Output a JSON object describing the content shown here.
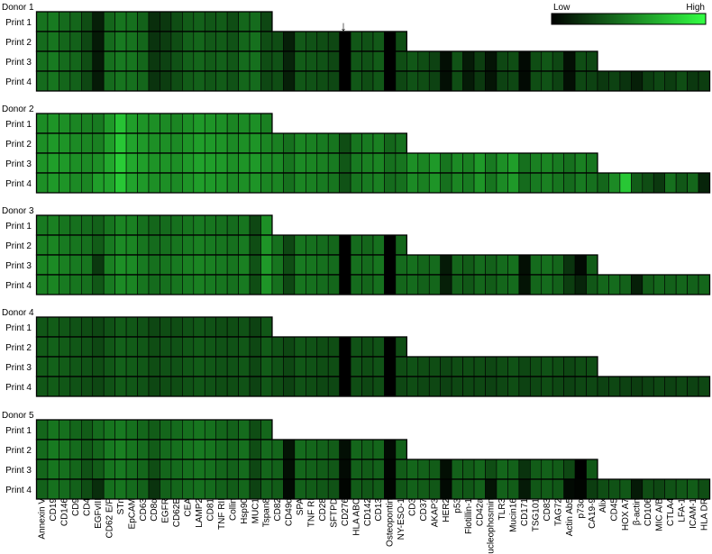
{
  "legend": {
    "low_label": "Low",
    "high_label": "High",
    "low_color": "#000000",
    "high_color": "#33ff44"
  },
  "arrow_marker": "↓",
  "chart_data": {
    "type": "heatmap",
    "colormap": [
      "#000000",
      "#33ff44"
    ],
    "value_range": [
      0,
      1
    ],
    "print_labels": [
      "Print 1",
      "Print 2",
      "Print 3",
      "Print 4"
    ],
    "markers": [
      "Annexin V",
      "CD19",
      "CD146",
      "CD9",
      "CD4",
      "EGFvIII",
      "CD62 E/P",
      "STn",
      "EpCAM",
      "CD63",
      "CD8α",
      "EGFR",
      "CD62E",
      "CEA",
      "LAMP2",
      "CD81",
      "TNF RII",
      "Collin",
      "Hsp90",
      "MUC1",
      "Tspan8",
      "CD82",
      "CD49d",
      "SPA",
      "TNF RI",
      "CD28",
      "SFTPD",
      "CD276",
      "HLA ABC",
      "CD142",
      "CD13",
      "Osteopontin",
      "NY-ESO-1",
      "CD3",
      "CD37",
      "AKAP3",
      "HER2",
      "p53",
      "Flotillin-1",
      "CD42a",
      "Nucleophosmin",
      "TLR3",
      "Mucin16",
      "CD171",
      "TSG101",
      "CD83",
      "TAG72",
      "Actin Ab5",
      "p73α",
      "CA19-9",
      "Alix",
      "CD45",
      "HOX A7",
      "β-actin",
      "CD106",
      "MIC A/B",
      "CTLA4",
      "LFA-1",
      "ICAM-1",
      "HLA DR"
    ],
    "prints_columns": [
      21,
      33,
      50,
      60
    ],
    "donors": [
      {
        "name": "Donor 1",
        "prints": [
          [
            0.45,
            0.48,
            0.42,
            0.4,
            0.3,
            0.12,
            0.4,
            0.46,
            0.44,
            0.38,
            0.18,
            0.22,
            0.3,
            0.36,
            0.38,
            0.34,
            0.36,
            0.3,
            0.4,
            0.42,
            0.28
          ],
          [
            0.42,
            0.46,
            0.4,
            0.38,
            0.28,
            0.1,
            0.42,
            0.48,
            0.45,
            0.4,
            0.2,
            0.24,
            0.3,
            0.38,
            0.4,
            0.35,
            0.36,
            0.32,
            0.4,
            0.44,
            0.3,
            0.3,
            0.12,
            0.35,
            0.32,
            0.3,
            0.28,
            0.0,
            0.34,
            0.32,
            0.35,
            0.0,
            0.3
          ],
          [
            0.44,
            0.48,
            0.42,
            0.4,
            0.3,
            0.1,
            0.44,
            0.48,
            0.46,
            0.4,
            0.22,
            0.26,
            0.32,
            0.38,
            0.4,
            0.36,
            0.38,
            0.34,
            0.42,
            0.44,
            0.3,
            0.32,
            0.14,
            0.36,
            0.34,
            0.32,
            0.28,
            0.0,
            0.34,
            0.32,
            0.36,
            0.0,
            0.3,
            0.34,
            0.3,
            0.26,
            0.06,
            0.32,
            0.1,
            0.24,
            0.08,
            0.28,
            0.3,
            0.04,
            0.3,
            0.34,
            0.28,
            0.06,
            0.3,
            0.28
          ],
          [
            0.42,
            0.46,
            0.4,
            0.38,
            0.28,
            0.1,
            0.42,
            0.46,
            0.44,
            0.4,
            0.2,
            0.24,
            0.3,
            0.36,
            0.38,
            0.34,
            0.36,
            0.32,
            0.4,
            0.42,
            0.28,
            0.3,
            0.12,
            0.34,
            0.32,
            0.3,
            0.28,
            0.0,
            0.34,
            0.3,
            0.34,
            0.0,
            0.28,
            0.32,
            0.3,
            0.26,
            0.06,
            0.3,
            0.1,
            0.22,
            0.08,
            0.26,
            0.28,
            0.04,
            0.3,
            0.32,
            0.26,
            0.06,
            0.28,
            0.26,
            0.22,
            0.26,
            0.2,
            0.12,
            0.24,
            0.28,
            0.24,
            0.3,
            0.22,
            0.24
          ]
        ]
      },
      {
        "name": "Donor 2",
        "prints": [
          [
            0.55,
            0.58,
            0.56,
            0.52,
            0.5,
            0.48,
            0.6,
            0.76,
            0.62,
            0.58,
            0.56,
            0.54,
            0.52,
            0.56,
            0.6,
            0.58,
            0.56,
            0.52,
            0.54,
            0.56,
            0.5
          ],
          [
            0.56,
            0.6,
            0.58,
            0.54,
            0.52,
            0.5,
            0.62,
            0.78,
            0.64,
            0.6,
            0.56,
            0.56,
            0.54,
            0.58,
            0.62,
            0.6,
            0.58,
            0.54,
            0.56,
            0.58,
            0.52,
            0.5,
            0.44,
            0.52,
            0.5,
            0.48,
            0.46,
            0.3,
            0.46,
            0.48,
            0.5,
            0.4,
            0.44
          ],
          [
            0.58,
            0.62,
            0.6,
            0.56,
            0.54,
            0.56,
            0.66,
            0.8,
            0.66,
            0.62,
            0.58,
            0.58,
            0.56,
            0.6,
            0.64,
            0.62,
            0.6,
            0.56,
            0.58,
            0.6,
            0.54,
            0.54,
            0.46,
            0.54,
            0.52,
            0.5,
            0.48,
            0.34,
            0.48,
            0.5,
            0.52,
            0.44,
            0.46,
            0.56,
            0.52,
            0.6,
            0.46,
            0.54,
            0.5,
            0.6,
            0.48,
            0.56,
            0.62,
            0.44,
            0.5,
            0.52,
            0.48,
            0.44,
            0.5,
            0.46
          ],
          [
            0.56,
            0.6,
            0.58,
            0.54,
            0.52,
            0.62,
            0.64,
            0.78,
            0.64,
            0.6,
            0.56,
            0.56,
            0.54,
            0.58,
            0.62,
            0.6,
            0.58,
            0.54,
            0.56,
            0.58,
            0.52,
            0.52,
            0.44,
            0.52,
            0.5,
            0.48,
            0.46,
            0.32,
            0.46,
            0.48,
            0.5,
            0.42,
            0.44,
            0.54,
            0.5,
            0.58,
            0.44,
            0.52,
            0.48,
            0.58,
            0.46,
            0.54,
            0.6,
            0.42,
            0.48,
            0.5,
            0.46,
            0.42,
            0.48,
            0.44,
            0.4,
            0.54,
            0.78,
            0.36,
            0.3,
            0.22,
            0.44,
            0.34,
            0.4,
            0.14
          ]
        ]
      },
      {
        "name": "Donor 3",
        "prints": [
          [
            0.48,
            0.5,
            0.46,
            0.44,
            0.42,
            0.38,
            0.46,
            0.52,
            0.5,
            0.44,
            0.4,
            0.42,
            0.44,
            0.46,
            0.48,
            0.46,
            0.44,
            0.42,
            0.46,
            0.28,
            0.56
          ],
          [
            0.5,
            0.52,
            0.48,
            0.46,
            0.44,
            0.36,
            0.48,
            0.54,
            0.52,
            0.46,
            0.42,
            0.44,
            0.46,
            0.48,
            0.5,
            0.48,
            0.46,
            0.44,
            0.48,
            0.3,
            0.58,
            0.44,
            0.28,
            0.46,
            0.44,
            0.42,
            0.4,
            0.0,
            0.42,
            0.4,
            0.44,
            0.0,
            0.4
          ],
          [
            0.52,
            0.54,
            0.5,
            0.48,
            0.46,
            0.22,
            0.5,
            0.56,
            0.54,
            0.48,
            0.44,
            0.46,
            0.48,
            0.5,
            0.52,
            0.5,
            0.48,
            0.46,
            0.5,
            0.32,
            0.6,
            0.46,
            0.3,
            0.48,
            0.46,
            0.44,
            0.42,
            0.0,
            0.44,
            0.42,
            0.46,
            0.0,
            0.42,
            0.44,
            0.4,
            0.42,
            0.1,
            0.4,
            0.36,
            0.42,
            0.38,
            0.42,
            0.44,
            0.06,
            0.42,
            0.44,
            0.4,
            0.2,
            0.04,
            0.36
          ],
          [
            0.5,
            0.52,
            0.48,
            0.46,
            0.44,
            0.34,
            0.48,
            0.54,
            0.52,
            0.46,
            0.42,
            0.44,
            0.46,
            0.48,
            0.5,
            0.48,
            0.46,
            0.44,
            0.48,
            0.3,
            0.58,
            0.44,
            0.28,
            0.46,
            0.44,
            0.42,
            0.4,
            0.0,
            0.42,
            0.4,
            0.44,
            0.0,
            0.4,
            0.42,
            0.38,
            0.4,
            0.12,
            0.38,
            0.34,
            0.4,
            0.36,
            0.4,
            0.42,
            0.08,
            0.4,
            0.42,
            0.38,
            0.24,
            0.14,
            0.34,
            0.4,
            0.42,
            0.38,
            0.12,
            0.36,
            0.4,
            0.38,
            0.4,
            0.38,
            0.4
          ]
        ]
      },
      {
        "name": "Donor 4",
        "prints": [
          [
            0.34,
            0.36,
            0.34,
            0.32,
            0.3,
            0.28,
            0.32,
            0.36,
            0.34,
            0.32,
            0.28,
            0.3,
            0.3,
            0.32,
            0.34,
            0.32,
            0.3,
            0.3,
            0.32,
            0.26,
            0.34
          ],
          [
            0.36,
            0.38,
            0.36,
            0.34,
            0.32,
            0.28,
            0.34,
            0.38,
            0.36,
            0.34,
            0.3,
            0.32,
            0.32,
            0.34,
            0.36,
            0.34,
            0.32,
            0.32,
            0.34,
            0.28,
            0.36,
            0.32,
            0.28,
            0.34,
            0.32,
            0.3,
            0.3,
            0.0,
            0.32,
            0.3,
            0.32,
            0.0,
            0.3
          ],
          [
            0.36,
            0.38,
            0.36,
            0.34,
            0.32,
            0.3,
            0.34,
            0.38,
            0.36,
            0.34,
            0.3,
            0.32,
            0.32,
            0.34,
            0.36,
            0.34,
            0.32,
            0.32,
            0.34,
            0.28,
            0.36,
            0.32,
            0.28,
            0.34,
            0.32,
            0.3,
            0.3,
            0.0,
            0.32,
            0.3,
            0.32,
            0.0,
            0.3,
            0.32,
            0.3,
            0.3,
            0.28,
            0.3,
            0.3,
            0.3,
            0.28,
            0.3,
            0.32,
            0.28,
            0.3,
            0.32,
            0.3,
            0.28,
            0.3,
            0.3
          ],
          [
            0.34,
            0.36,
            0.34,
            0.32,
            0.3,
            0.28,
            0.32,
            0.36,
            0.34,
            0.32,
            0.28,
            0.3,
            0.3,
            0.32,
            0.34,
            0.32,
            0.3,
            0.3,
            0.32,
            0.26,
            0.34,
            0.3,
            0.26,
            0.32,
            0.3,
            0.28,
            0.28,
            0.0,
            0.3,
            0.28,
            0.3,
            0.0,
            0.28,
            0.3,
            0.28,
            0.28,
            0.26,
            0.28,
            0.28,
            0.28,
            0.26,
            0.28,
            0.3,
            0.26,
            0.28,
            0.3,
            0.28,
            0.26,
            0.28,
            0.28,
            0.26,
            0.28,
            0.26,
            0.24,
            0.26,
            0.28,
            0.26,
            0.28,
            0.26,
            0.28
          ]
        ]
      },
      {
        "name": "Donor 5",
        "prints": [
          [
            0.4,
            0.46,
            0.44,
            0.4,
            0.36,
            0.42,
            0.46,
            0.48,
            0.44,
            0.4,
            0.36,
            0.4,
            0.42,
            0.44,
            0.46,
            0.44,
            0.4,
            0.38,
            0.42,
            0.3,
            0.4
          ],
          [
            0.42,
            0.48,
            0.46,
            0.42,
            0.36,
            0.4,
            0.48,
            0.5,
            0.46,
            0.42,
            0.36,
            0.42,
            0.44,
            0.46,
            0.48,
            0.46,
            0.42,
            0.4,
            0.44,
            0.3,
            0.42,
            0.4,
            0.08,
            0.42,
            0.4,
            0.38,
            0.36,
            0.06,
            0.4,
            0.38,
            0.4,
            0.04,
            0.38
          ],
          [
            0.4,
            0.46,
            0.44,
            0.4,
            0.32,
            0.36,
            0.46,
            0.48,
            0.44,
            0.4,
            0.3,
            0.4,
            0.42,
            0.44,
            0.46,
            0.44,
            0.4,
            0.38,
            0.42,
            0.28,
            0.4,
            0.38,
            0.06,
            0.4,
            0.38,
            0.36,
            0.34,
            0.04,
            0.38,
            0.36,
            0.38,
            0.02,
            0.36,
            0.4,
            0.38,
            0.36,
            0.06,
            0.38,
            0.36,
            0.4,
            0.3,
            0.4,
            0.38,
            0.2,
            0.36,
            0.38,
            0.36,
            0.28,
            0.0,
            0.34
          ],
          [
            0.38,
            0.44,
            0.42,
            0.38,
            0.3,
            0.18,
            0.44,
            0.46,
            0.42,
            0.38,
            0.2,
            0.38,
            0.4,
            0.42,
            0.44,
            0.42,
            0.38,
            0.36,
            0.4,
            0.26,
            0.38,
            0.36,
            0.04,
            0.38,
            0.36,
            0.34,
            0.32,
            0.02,
            0.36,
            0.34,
            0.36,
            0.02,
            0.34,
            0.38,
            0.36,
            0.34,
            0.04,
            0.36,
            0.34,
            0.38,
            0.08,
            0.38,
            0.36,
            0.1,
            0.34,
            0.36,
            0.34,
            0.04,
            0.02,
            0.24,
            0.3,
            0.32,
            0.34,
            0.1,
            0.3,
            0.28,
            0.32,
            0.34,
            0.36,
            0.3
          ]
        ]
      }
    ]
  }
}
